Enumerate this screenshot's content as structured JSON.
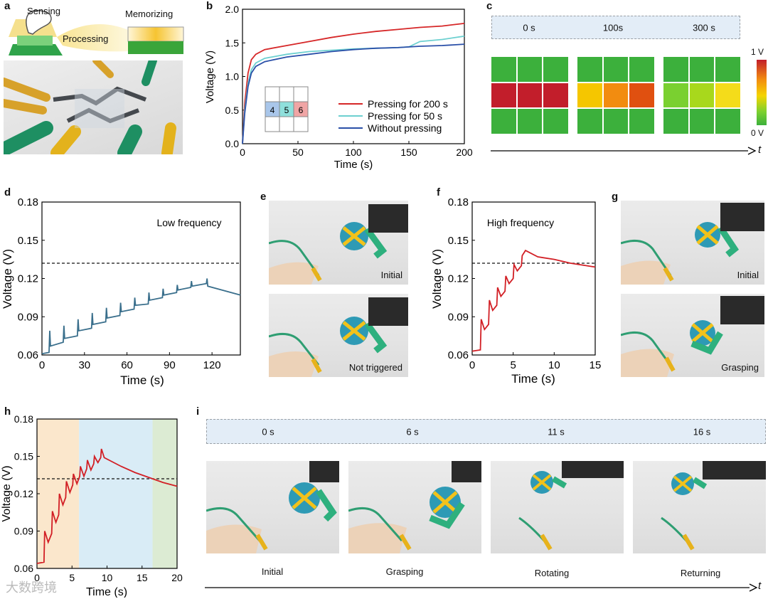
{
  "panel_labels": {
    "a": "a",
    "b": "b",
    "c": "c",
    "d": "d",
    "e": "e",
    "f": "f",
    "g": "g",
    "h": "h",
    "i": "i"
  },
  "panel_a": {
    "sensing": "Sensing",
    "processing": "Processing",
    "memorizing": "Memorizing"
  },
  "panel_b": {
    "inset_numbers": [
      "4",
      "5",
      "6"
    ],
    "chart_data": {
      "type": "line",
      "xlabel": "Time (s)",
      "ylabel": "Voltage (V)",
      "xlim": [
        0,
        200
      ],
      "ylim": [
        0,
        2.0
      ],
      "xticks": [
        0,
        50,
        100,
        150,
        200
      ],
      "yticks": [
        0.0,
        0.5,
        1.0,
        1.5,
        2.0
      ],
      "legend_position": "bottom-right",
      "series": [
        {
          "name": "Pressing for 200 s",
          "color": "#d62728",
          "x": [
            0,
            2,
            5,
            8,
            12,
            20,
            40,
            60,
            80,
            100,
            120,
            140,
            160,
            180,
            200
          ],
          "y": [
            0,
            0.6,
            1.05,
            1.25,
            1.33,
            1.4,
            1.46,
            1.52,
            1.58,
            1.63,
            1.67,
            1.7,
            1.73,
            1.75,
            1.79
          ]
        },
        {
          "name": "Pressing for 50 s",
          "color": "#6dd0d0",
          "x": [
            0,
            2,
            5,
            8,
            12,
            20,
            40,
            60,
            80,
            100,
            120,
            140,
            150,
            160,
            180,
            200
          ],
          "y": [
            0,
            0.5,
            0.9,
            1.1,
            1.2,
            1.27,
            1.33,
            1.37,
            1.39,
            1.41,
            1.42,
            1.43,
            1.44,
            1.52,
            1.55,
            1.6
          ]
        },
        {
          "name": "Without pressing",
          "color": "#2a4fa8",
          "x": [
            0,
            2,
            5,
            8,
            12,
            20,
            40,
            60,
            80,
            100,
            120,
            140,
            160,
            180,
            200
          ],
          "y": [
            0,
            0.45,
            0.85,
            1.05,
            1.15,
            1.22,
            1.29,
            1.33,
            1.37,
            1.4,
            1.42,
            1.43,
            1.45,
            1.46,
            1.48
          ]
        }
      ]
    }
  },
  "panel_c": {
    "time_labels": [
      "0 s",
      "100s",
      "300 s"
    ],
    "colorbar_max": "1 V",
    "colorbar_min": "0 V",
    "axis_label": "t",
    "grid_colors": [
      [
        "#3cb03c",
        "#3cb03c",
        "#3cb03c",
        "#c21e2b",
        "#c21e2b",
        "#c21e2b",
        "#3cb03c",
        "#3cb03c",
        "#3cb03c"
      ],
      [
        "#3cb03c",
        "#3cb03c",
        "#3cb03c",
        "#f5c600",
        "#f28c10",
        "#e05010",
        "#3cb03c",
        "#3cb03c",
        "#3cb03c"
      ],
      [
        "#3cb03c",
        "#3cb03c",
        "#3cb03c",
        "#7ad030",
        "#a8d81c",
        "#f4dc1a",
        "#3cb03c",
        "#3cb03c",
        "#3cb03c"
      ]
    ]
  },
  "panel_d": {
    "annotation": "Low frequency",
    "chart_data": {
      "type": "line",
      "xlabel": "Time (s)",
      "ylabel": "Voltage (V)",
      "xlim": [
        0,
        140
      ],
      "ylim": [
        0.06,
        0.18
      ],
      "xticks": [
        0,
        30,
        60,
        90,
        120
      ],
      "yticks": [
        0.06,
        0.09,
        0.12,
        0.15,
        0.18
      ],
      "threshold": 0.132,
      "series": [
        {
          "color": "#3a6f8c",
          "x": [
            0,
            5,
            5.5,
            6,
            15,
            15.5,
            16,
            25,
            25.5,
            26,
            35,
            35.5,
            36,
            45,
            45.5,
            46,
            55,
            55.5,
            56,
            65,
            65.5,
            66,
            75,
            75.5,
            76,
            85,
            85.5,
            86,
            95,
            95.5,
            96,
            105,
            105.5,
            106,
            116,
            116.5,
            117,
            140
          ],
          "y": [
            0.061,
            0.062,
            0.079,
            0.067,
            0.07,
            0.083,
            0.073,
            0.075,
            0.088,
            0.079,
            0.081,
            0.093,
            0.084,
            0.086,
            0.097,
            0.089,
            0.091,
            0.101,
            0.094,
            0.096,
            0.105,
            0.099,
            0.1,
            0.109,
            0.103,
            0.105,
            0.112,
            0.107,
            0.109,
            0.115,
            0.111,
            0.113,
            0.118,
            0.114,
            0.116,
            0.12,
            0.114,
            0.107
          ]
        }
      ]
    }
  },
  "panel_e": {
    "captions": [
      "Initial",
      "Not triggered"
    ]
  },
  "panel_f": {
    "annotation": "High frequency",
    "chart_data": {
      "type": "line",
      "xlabel": "Time (s)",
      "ylabel": "Voltage (V)",
      "xlim": [
        0,
        15
      ],
      "ylim": [
        0.06,
        0.18
      ],
      "xticks": [
        0,
        5,
        10,
        15
      ],
      "yticks": [
        0.06,
        0.09,
        0.12,
        0.15,
        0.18
      ],
      "threshold": 0.132,
      "series": [
        {
          "color": "#d21f25",
          "x": [
            0,
            1,
            1.1,
            1.5,
            2,
            2.1,
            2.5,
            3,
            3.1,
            3.5,
            4,
            4.1,
            4.5,
            5,
            5.1,
            5.5,
            6,
            6.1,
            6.5,
            8,
            10,
            12,
            15
          ],
          "y": [
            0.063,
            0.064,
            0.088,
            0.08,
            0.084,
            0.103,
            0.095,
            0.099,
            0.113,
            0.106,
            0.11,
            0.122,
            0.116,
            0.12,
            0.131,
            0.126,
            0.13,
            0.138,
            0.142,
            0.137,
            0.135,
            0.132,
            0.129
          ]
        }
      ]
    }
  },
  "panel_g": {
    "captions": [
      "Initial",
      "Grasping"
    ]
  },
  "panel_h": {
    "chart_data": {
      "type": "line",
      "xlabel": "Time (s)",
      "ylabel": "Voltage (V)",
      "xlim": [
        0,
        20
      ],
      "ylim": [
        0.06,
        0.18
      ],
      "xticks": [
        0,
        5,
        10,
        15,
        20
      ],
      "yticks": [
        0.06,
        0.09,
        0.12,
        0.15,
        0.18
      ],
      "threshold": 0.132,
      "regions": [
        {
          "from": 0,
          "to": 6,
          "color": "#fbe7cc"
        },
        {
          "from": 6,
          "to": 16.5,
          "color": "#d9ecf6"
        },
        {
          "from": 16.5,
          "to": 20,
          "color": "#dcebd3"
        }
      ],
      "series": [
        {
          "color": "#d21f25",
          "x": [
            0,
            1,
            1.1,
            1.6,
            2.1,
            2.2,
            2.7,
            3.1,
            3.2,
            3.7,
            4.1,
            4.2,
            4.7,
            5.1,
            5.2,
            5.7,
            6.1,
            6.2,
            6.7,
            7.1,
            7.2,
            7.7,
            8.1,
            8.2,
            8.7,
            9.1,
            9.2,
            9.6,
            12,
            14,
            16,
            18,
            20
          ],
          "y": [
            0.064,
            0.065,
            0.09,
            0.081,
            0.088,
            0.106,
            0.097,
            0.103,
            0.12,
            0.111,
            0.117,
            0.13,
            0.121,
            0.127,
            0.136,
            0.128,
            0.134,
            0.142,
            0.134,
            0.14,
            0.147,
            0.139,
            0.144,
            0.15,
            0.145,
            0.149,
            0.156,
            0.149,
            0.142,
            0.137,
            0.133,
            0.129,
            0.126
          ]
        }
      ]
    }
  },
  "panel_i": {
    "time_labels": [
      "0 s",
      "6 s",
      "11 s",
      "16 s"
    ],
    "captions": [
      "Initial",
      "Grasping",
      "Rotating",
      "Returning"
    ],
    "axis_label": "t"
  },
  "watermark": "大数跨境"
}
